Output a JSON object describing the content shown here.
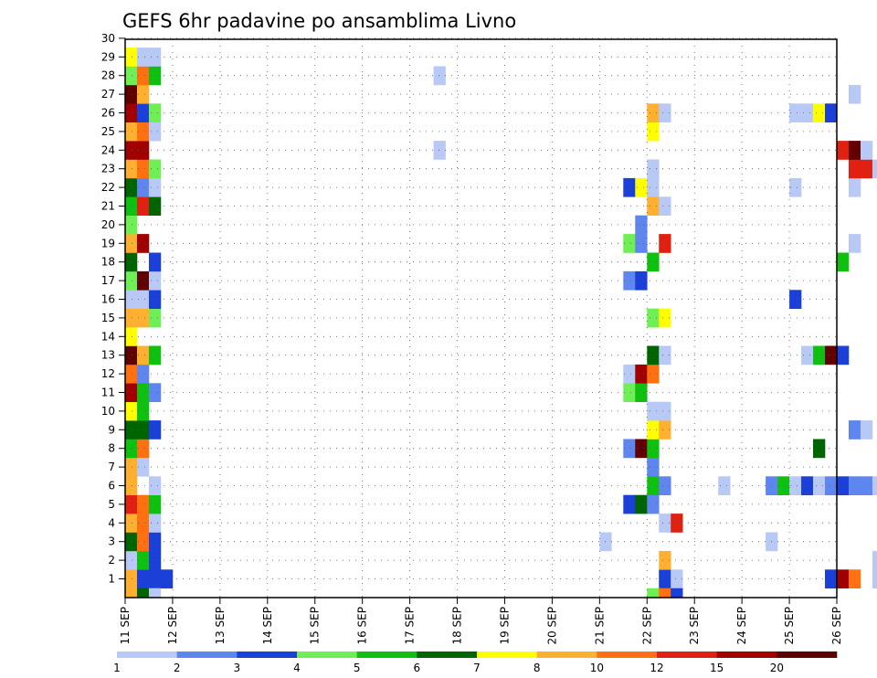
{
  "chart_data": {
    "type": "heatmap",
    "title": "GEFS 6hr padavine po ansamblima Livno",
    "xlabel": "",
    "ylabel": "",
    "x_tick_labels": [
      "11 SEP",
      "12 SEP",
      "13 SEP",
      "14 SEP",
      "15 SEP",
      "16 SEP",
      "17 SEP",
      "18 SEP",
      "19 SEP",
      "20 SEP",
      "21 SEP",
      "22 SEP",
      "23 SEP",
      "24 SEP",
      "25 SEP",
      "26 SEP"
    ],
    "y_tick_labels": [
      "1",
      "2",
      "3",
      "4",
      "5",
      "6",
      "7",
      "8",
      "9",
      "10",
      "11",
      "12",
      "13",
      "14",
      "15",
      "16",
      "17",
      "18",
      "19",
      "20",
      "21",
      "22",
      "23",
      "24",
      "25",
      "26",
      "27",
      "28",
      "29",
      "30"
    ],
    "xlim_hours": [
      0,
      360
    ],
    "time_step_hours": 6,
    "ylim_members": [
      0,
      30
    ],
    "grid": true,
    "legend": {
      "placement": "bottom",
      "levels": [
        "1",
        "2",
        "3",
        "4",
        "5",
        "6",
        "7",
        "8",
        "10",
        "12",
        "15",
        "20"
      ],
      "colors": [
        "#b9c9f6",
        "#5f85ee",
        "#1a40d8",
        "#70ee55",
        "#10c010",
        "#006400",
        "#ffff00",
        "#ffb030",
        "#ff7010",
        "#e02010",
        "#a00000",
        "#600000"
      ]
    },
    "cells": [
      [
        1,
        0,
        8
      ],
      [
        1,
        1,
        3
      ],
      [
        1,
        2,
        3
      ],
      [
        1,
        3,
        3
      ],
      [
        1,
        45,
        3
      ],
      [
        1,
        46,
        1
      ],
      [
        1,
        59,
        3
      ],
      [
        1,
        60,
        11
      ],
      [
        1,
        61,
        9
      ],
      [
        1,
        63,
        1
      ],
      [
        1,
        64,
        1
      ],
      [
        1,
        65,
        1
      ],
      [
        1,
        66,
        1
      ],
      [
        1,
        67,
        1
      ],
      [
        1,
        68,
        1
      ],
      [
        1,
        69,
        1
      ],
      [
        1,
        70,
        1
      ],
      [
        1,
        71,
        1
      ],
      [
        1,
        72,
        3
      ],
      [
        1,
        74,
        1
      ],
      [
        1,
        75,
        9
      ],
      [
        1,
        77,
        1
      ],
      [
        1,
        78,
        3
      ],
      [
        1,
        79,
        4
      ],
      [
        1,
        80,
        1
      ],
      [
        1,
        82,
        1
      ],
      [
        1,
        83,
        2
      ],
      [
        1,
        84,
        2
      ],
      [
        2,
        0,
        1
      ],
      [
        2,
        1,
        5
      ],
      [
        2,
        2,
        3
      ],
      [
        2,
        45,
        8
      ],
      [
        2,
        63,
        1
      ],
      [
        2,
        64,
        1
      ],
      [
        2,
        65,
        3
      ],
      [
        2,
        66,
        8
      ],
      [
        2,
        67,
        10
      ],
      [
        2,
        68,
        3
      ],
      [
        2,
        69,
        2
      ],
      [
        2,
        70,
        1
      ],
      [
        2,
        72,
        1
      ],
      [
        2,
        73,
        2
      ],
      [
        3,
        0,
        6
      ],
      [
        3,
        1,
        9
      ],
      [
        3,
        2,
        3
      ],
      [
        3,
        40,
        1
      ],
      [
        3,
        54,
        1
      ],
      [
        4,
        0,
        8
      ],
      [
        4,
        1,
        9
      ],
      [
        4,
        2,
        1
      ],
      [
        4,
        45,
        1
      ],
      [
        4,
        46,
        10
      ],
      [
        4,
        83,
        3
      ],
      [
        5,
        0,
        10
      ],
      [
        5,
        1,
        9
      ],
      [
        5,
        2,
        5
      ],
      [
        5,
        42,
        3
      ],
      [
        5,
        43,
        6
      ],
      [
        5,
        44,
        2
      ],
      [
        5,
        66,
        2
      ],
      [
        5,
        67,
        10
      ],
      [
        5,
        68,
        3
      ],
      [
        5,
        70,
        1
      ],
      [
        5,
        71,
        5
      ],
      [
        5,
        72,
        6
      ],
      [
        5,
        73,
        11
      ],
      [
        5,
        74,
        12
      ],
      [
        5,
        75,
        3
      ],
      [
        5,
        76,
        9
      ],
      [
        5,
        77,
        1
      ],
      [
        6,
        0,
        8
      ],
      [
        6,
        2,
        1
      ],
      [
        6,
        44,
        5
      ],
      [
        6,
        45,
        2
      ],
      [
        6,
        50,
        1
      ],
      [
        6,
        54,
        2
      ],
      [
        6,
        55,
        5
      ],
      [
        6,
        56,
        1
      ],
      [
        6,
        57,
        3
      ],
      [
        6,
        58,
        1
      ],
      [
        6,
        59,
        2
      ],
      [
        6,
        60,
        3
      ],
      [
        6,
        61,
        2
      ],
      [
        6,
        62,
        2
      ],
      [
        6,
        63,
        1
      ],
      [
        6,
        69,
        5
      ],
      [
        6,
        70,
        1
      ],
      [
        7,
        0,
        8
      ],
      [
        7,
        1,
        1
      ],
      [
        7,
        44,
        2
      ],
      [
        8,
        0,
        5
      ],
      [
        8,
        1,
        9
      ],
      [
        8,
        42,
        2
      ],
      [
        8,
        43,
        12
      ],
      [
        8,
        44,
        5
      ],
      [
        8,
        58,
        6
      ],
      [
        8,
        77,
        1
      ],
      [
        8,
        78,
        8
      ],
      [
        8,
        79,
        2
      ],
      [
        8,
        80,
        1
      ],
      [
        9,
        0,
        6
      ],
      [
        9,
        1,
        6
      ],
      [
        9,
        2,
        3
      ],
      [
        9,
        44,
        7
      ],
      [
        9,
        45,
        8
      ],
      [
        9,
        61,
        2
      ],
      [
        9,
        62,
        1
      ],
      [
        9,
        77,
        1
      ],
      [
        9,
        78,
        1
      ],
      [
        10,
        0,
        7
      ],
      [
        10,
        1,
        5
      ],
      [
        10,
        44,
        1
      ],
      [
        10,
        45,
        1
      ],
      [
        10,
        78,
        8
      ],
      [
        10,
        79,
        2
      ],
      [
        10,
        80,
        3
      ],
      [
        11,
        0,
        11
      ],
      [
        11,
        1,
        5
      ],
      [
        11,
        2,
        2
      ],
      [
        11,
        42,
        4
      ],
      [
        11,
        43,
        5
      ],
      [
        12,
        0,
        9
      ],
      [
        12,
        1,
        2
      ],
      [
        12,
        42,
        1
      ],
      [
        12,
        43,
        11
      ],
      [
        12,
        44,
        9
      ],
      [
        12,
        77,
        1
      ],
      [
        12,
        78,
        3
      ],
      [
        13,
        0,
        12
      ],
      [
        13,
        1,
        8
      ],
      [
        13,
        2,
        5
      ],
      [
        13,
        44,
        6
      ],
      [
        13,
        45,
        1
      ],
      [
        13,
        57,
        1
      ],
      [
        13,
        58,
        5
      ],
      [
        13,
        59,
        12
      ],
      [
        13,
        60,
        3
      ],
      [
        14,
        0,
        7
      ],
      [
        15,
        0,
        8
      ],
      [
        15,
        1,
        8
      ],
      [
        15,
        2,
        4
      ],
      [
        15,
        44,
        4
      ],
      [
        15,
        45,
        7
      ],
      [
        15,
        69,
        4
      ],
      [
        15,
        70,
        1
      ],
      [
        15,
        72,
        1
      ],
      [
        16,
        0,
        1
      ],
      [
        16,
        1,
        1
      ],
      [
        16,
        2,
        3
      ],
      [
        16,
        56,
        3
      ],
      [
        17,
        0,
        4
      ],
      [
        17,
        1,
        12
      ],
      [
        17,
        2,
        1
      ],
      [
        17,
        42,
        2
      ],
      [
        17,
        43,
        3
      ],
      [
        17,
        70,
        1
      ],
      [
        17,
        71,
        2
      ],
      [
        18,
        0,
        6
      ],
      [
        18,
        2,
        3
      ],
      [
        18,
        44,
        5
      ],
      [
        18,
        60,
        5
      ],
      [
        18,
        78,
        9
      ],
      [
        19,
        0,
        8
      ],
      [
        19,
        1,
        11
      ],
      [
        19,
        42,
        4
      ],
      [
        19,
        43,
        2
      ],
      [
        19,
        45,
        10
      ],
      [
        19,
        61,
        1
      ],
      [
        20,
        0,
        4
      ],
      [
        20,
        43,
        2
      ],
      [
        20,
        71,
        2
      ],
      [
        21,
        0,
        5
      ],
      [
        21,
        1,
        10
      ],
      [
        21,
        2,
        6
      ],
      [
        21,
        44,
        8
      ],
      [
        21,
        45,
        1
      ],
      [
        22,
        0,
        6
      ],
      [
        22,
        1,
        2
      ],
      [
        22,
        2,
        1
      ],
      [
        22,
        42,
        3
      ],
      [
        22,
        43,
        7
      ],
      [
        22,
        44,
        1
      ],
      [
        22,
        56,
        1
      ],
      [
        22,
        61,
        1
      ],
      [
        22,
        64,
        1
      ],
      [
        23,
        0,
        8
      ],
      [
        23,
        1,
        9
      ],
      [
        23,
        2,
        4
      ],
      [
        23,
        44,
        1
      ],
      [
        23,
        61,
        10
      ],
      [
        23,
        62,
        10
      ],
      [
        23,
        63,
        1
      ],
      [
        23,
        79,
        1
      ],
      [
        23,
        80,
        3
      ],
      [
        23,
        81,
        3
      ],
      [
        23,
        82,
        1
      ],
      [
        23,
        83,
        6
      ],
      [
        24,
        0,
        11
      ],
      [
        24,
        1,
        11
      ],
      [
        24,
        26,
        1
      ],
      [
        24,
        60,
        10
      ],
      [
        24,
        61,
        12
      ],
      [
        24,
        62,
        1
      ],
      [
        24,
        73,
        5
      ],
      [
        24,
        74,
        4
      ],
      [
        24,
        76,
        1
      ],
      [
        24,
        77,
        2
      ],
      [
        24,
        78,
        5
      ],
      [
        24,
        79,
        6
      ],
      [
        24,
        80,
        1
      ],
      [
        24,
        81,
        3
      ],
      [
        24,
        82,
        12
      ],
      [
        24,
        83,
        7
      ],
      [
        25,
        0,
        8
      ],
      [
        25,
        1,
        9
      ],
      [
        25,
        2,
        1
      ],
      [
        25,
        44,
        7
      ],
      [
        25,
        72,
        1
      ],
      [
        25,
        73,
        1
      ],
      [
        26,
        0,
        11
      ],
      [
        26,
        1,
        3
      ],
      [
        26,
        2,
        4
      ],
      [
        26,
        44,
        8
      ],
      [
        26,
        45,
        1
      ],
      [
        26,
        56,
        1
      ],
      [
        26,
        57,
        1
      ],
      [
        26,
        58,
        7
      ],
      [
        26,
        59,
        3
      ],
      [
        27,
        0,
        12
      ],
      [
        27,
        1,
        8
      ],
      [
        27,
        61,
        1
      ],
      [
        27,
        76,
        2
      ],
      [
        28,
        0,
        4
      ],
      [
        28,
        1,
        9
      ],
      [
        28,
        2,
        5
      ],
      [
        28,
        26,
        1
      ],
      [
        28,
        69,
        11
      ],
      [
        28,
        70,
        12
      ],
      [
        28,
        71,
        12
      ],
      [
        28,
        72,
        10
      ],
      [
        28,
        73,
        2
      ],
      [
        28,
        74,
        1
      ],
      [
        28,
        75,
        2
      ],
      [
        28,
        77,
        1
      ],
      [
        28,
        78,
        8
      ],
      [
        28,
        79,
        2
      ],
      [
        29,
        0,
        7
      ],
      [
        29,
        1,
        1
      ],
      [
        29,
        2,
        1
      ],
      [
        29,
        80,
        1
      ],
      [
        29,
        81,
        6
      ],
      [
        29,
        82,
        2
      ],
      [
        29,
        86,
        2
      ]
    ],
    "bottom_strip": [
      [
        0,
        8
      ],
      [
        1,
        6
      ],
      [
        2,
        1
      ],
      [
        44,
        4
      ],
      [
        45,
        9
      ],
      [
        46,
        3
      ],
      [
        81,
        4
      ],
      [
        82,
        9
      ]
    ]
  }
}
